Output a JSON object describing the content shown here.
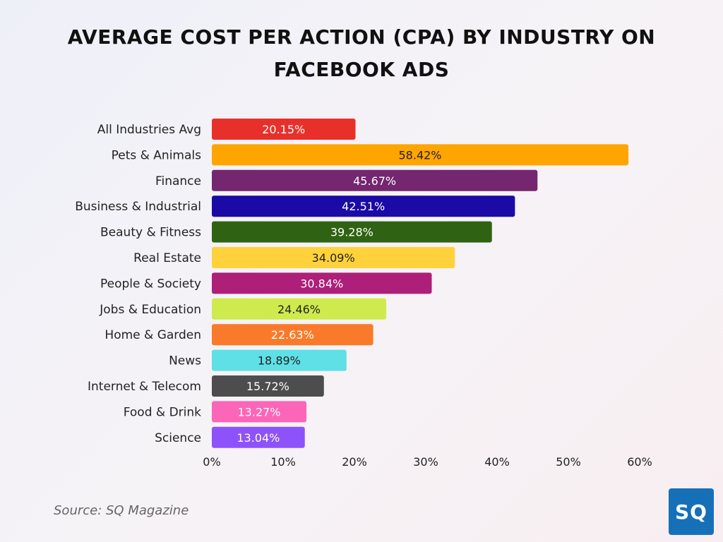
{
  "title_line1": "AVERAGE COST PER ACTION (CPA) BY INDUSTRY ON",
  "title_line2": "FACEBOOK ADS",
  "source": "Source: SQ Magazine",
  "logo_text": "SQ",
  "chart_data": {
    "type": "bar",
    "orientation": "horizontal",
    "categories": [
      "All Industries Avg",
      "Pets & Animals",
      "Finance",
      "Business & Industrial",
      "Beauty & Fitness",
      "Real Estate",
      "People & Society",
      "Jobs & Education",
      "Home & Garden",
      "News",
      "Internet & Telecom",
      "Food & Drink",
      "Science"
    ],
    "values": [
      20.15,
      58.42,
      45.67,
      42.51,
      39.28,
      34.09,
      30.84,
      24.46,
      22.63,
      18.89,
      15.72,
      13.27,
      13.04
    ],
    "labels": [
      "20.15%",
      "58.42%",
      "45.67%",
      "42.51%",
      "39.28%",
      "34.09%",
      "30.84%",
      "24.46%",
      "22.63%",
      "18.89%",
      "15.72%",
      "13.27%",
      "13.04%"
    ],
    "colors": [
      "#e8302b",
      "#ffa500",
      "#74266f",
      "#1b0aa5",
      "#2f6313",
      "#ffd23b",
      "#ad1f78",
      "#cfea4c",
      "#fa7a2b",
      "#5ee0e6",
      "#4d4d4d",
      "#fb66b8",
      "#8e52fb"
    ],
    "label_colors": [
      "#ffffff",
      "#222222",
      "#ffffff",
      "#ffffff",
      "#ffffff",
      "#222222",
      "#ffffff",
      "#222222",
      "#ffffff",
      "#222222",
      "#ffffff",
      "#ffffff",
      "#ffffff"
    ],
    "xlim": [
      0,
      60
    ],
    "xticks": [
      "0%",
      "10%",
      "20%",
      "30%",
      "40%",
      "50%",
      "60%"
    ],
    "grid": false
  }
}
